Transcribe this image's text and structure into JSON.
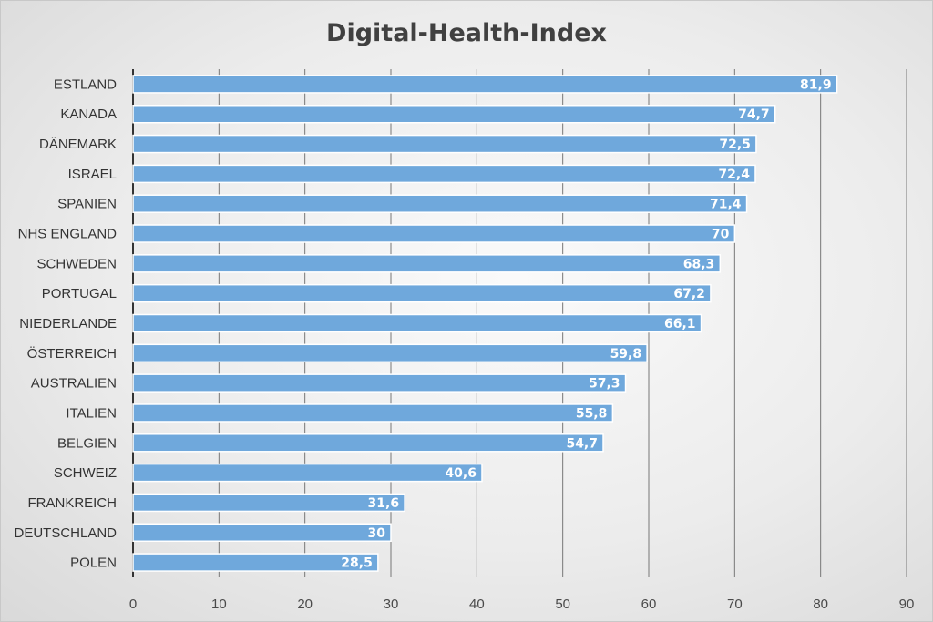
{
  "chart_data": {
    "type": "bar",
    "orientation": "horizontal",
    "title": "Digital-Health-Index",
    "categories": [
      "ESTLAND",
      "KANADA",
      "DÄNEMARK",
      "ISRAEL",
      "SPANIEN",
      "NHS ENGLAND",
      "SCHWEDEN",
      "PORTUGAL",
      "NIEDERLANDE",
      "ÖSTERREICH",
      "AUSTRALIEN",
      "ITALIEN",
      "BELGIEN",
      "SCHWEIZ",
      "FRANKREICH",
      "DEUTSCHLAND",
      "POLEN"
    ],
    "values": [
      81.9,
      74.7,
      72.5,
      72.4,
      71.4,
      70,
      68.3,
      67.2,
      66.1,
      59.8,
      57.3,
      55.8,
      54.7,
      40.6,
      31.6,
      30,
      28.5
    ],
    "value_labels": [
      "81,9",
      "74,7",
      "72,5",
      "72,4",
      "71,4",
      "70",
      "68,3",
      "67,2",
      "66,1",
      "59,8",
      "57,3",
      "55,8",
      "54,7",
      "40,6",
      "31,6",
      "30",
      "28,5"
    ],
    "x_ticks": [
      "0",
      "10",
      "20",
      "30",
      "40",
      "50",
      "60",
      "70",
      "80",
      "90"
    ],
    "xlim": [
      0,
      90
    ],
    "xlabel": "",
    "ylabel": "",
    "grid": "vertical",
    "colors": {
      "bar": "#6fa8dc",
      "bar_edge": "#5b9bd5",
      "grid": "#777777",
      "axis": "#333333"
    }
  }
}
